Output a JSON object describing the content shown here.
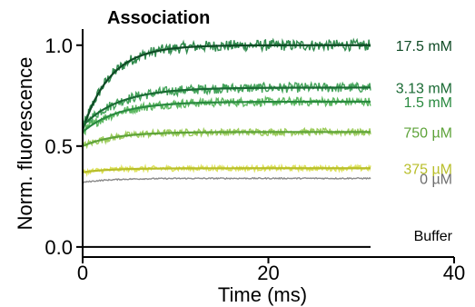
{
  "chart_data": {
    "type": "line",
    "title": "Association",
    "xlabel": "Time (ms)",
    "ylabel": "Norm. fluorescence",
    "xlim": [
      0,
      40
    ],
    "ylim": [
      -0.05,
      1.08
    ],
    "x_ticks": [
      {
        "value": 0,
        "label": "0"
      },
      {
        "value": 20,
        "label": "20"
      },
      {
        "value": 40,
        "label": "40"
      }
    ],
    "y_ticks": [
      {
        "value": 0.0,
        "label": "0.0"
      },
      {
        "value": 0.5,
        "label": "0.5"
      },
      {
        "value": 1.0,
        "label": "1.0"
      }
    ],
    "grid": false,
    "data_range_x": [
      0,
      31
    ],
    "series": [
      {
        "name": "17.5 mM",
        "color": "#2f8a4c",
        "fit_color": "#0f4a25",
        "start": 0.58,
        "plateau": 1.0,
        "tau": 3.0,
        "noise": 0.028
      },
      {
        "name": "3.13 mM",
        "color": "#43a35a",
        "fit_color": "#1a6a34",
        "start": 0.6,
        "plateau": 0.79,
        "tau": 4.0,
        "noise": 0.025
      },
      {
        "name": "1.5 mM",
        "color": "#5cb860",
        "fit_color": "#2a8a40",
        "start": 0.57,
        "plateau": 0.72,
        "tau": 3.8,
        "noise": 0.022
      },
      {
        "name": "750 µM",
        "color": "#9ccc5a",
        "fit_color": "#5ea33a",
        "start": 0.5,
        "plateau": 0.57,
        "tau": 3.5,
        "noise": 0.018
      },
      {
        "name": "375 µM",
        "color": "#dde25a",
        "fit_color": "#b8be2a",
        "start": 0.37,
        "plateau": 0.39,
        "tau": 3.0,
        "noise": 0.014
      },
      {
        "name": "0 µM",
        "color": "#8a8a8a",
        "fit_color": "#6e6e6e",
        "start": 0.32,
        "plateau": 0.34,
        "tau": 3.0,
        "noise": 0.003
      },
      {
        "name": "Buffer",
        "color": "#000000",
        "fit_color": "#000000",
        "start": 0.0,
        "plateau": 0.0,
        "tau": 3.0,
        "noise": 0.0
      }
    ]
  }
}
